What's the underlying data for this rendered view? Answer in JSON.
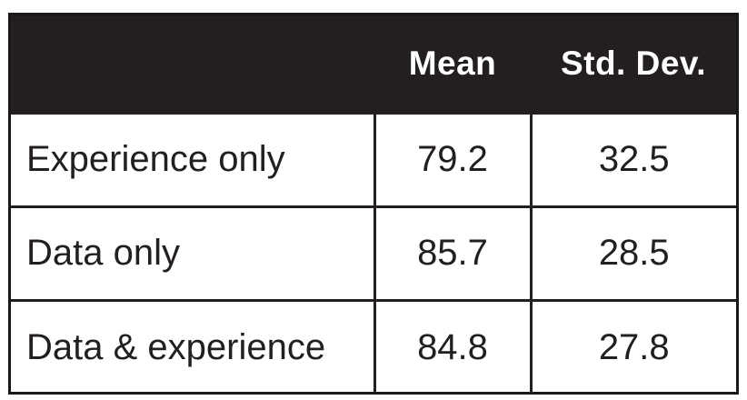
{
  "chart_data": {
    "type": "table",
    "columns": [
      "",
      "Mean",
      "Std. Dev."
    ],
    "rows": [
      {
        "label": "Experience only",
        "mean": "79.2",
        "std_dev": "32.5"
      },
      {
        "label": "Data only",
        "mean": "85.7",
        "std_dev": "28.5"
      },
      {
        "label": "Data & experience",
        "mean": "84.8",
        "std_dev": "27.8"
      }
    ],
    "colors": {
      "header_background": "#231f20",
      "header_text": "#ffffff",
      "grid_lines": "#231f20",
      "cell_text": "#231f20"
    }
  }
}
